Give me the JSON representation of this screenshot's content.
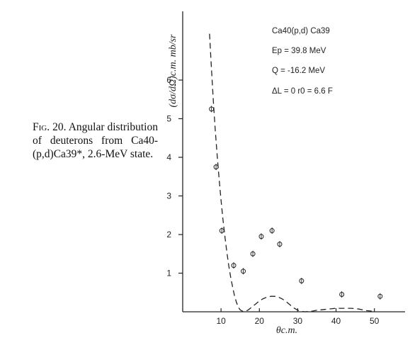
{
  "caption": {
    "label": "Fig. 20.",
    "text": "Angular distribution of deuterons from Ca40-(p,d)Ca39*, 2.6-MeV state."
  },
  "chart_data": {
    "type": "scatter",
    "title": "",
    "xlabel": "θc.m.",
    "ylabel": "(dσ/dΩ)c.m. mb/sr",
    "xlim": [
      0,
      58
    ],
    "ylim": [
      0,
      7
    ],
    "x_ticks": [
      10,
      20,
      30,
      40,
      50
    ],
    "y_ticks": [
      1,
      2,
      3,
      4,
      5,
      6
    ],
    "grid": false,
    "annotations": [
      "Ca40(p,d) Ca39",
      "Ep = 39.8 MeV",
      "Q = -16.2 MeV",
      "ΔL = 0    r0 = 6.6 F"
    ],
    "series": [
      {
        "style": "points",
        "x": [
          7.5,
          8.7,
          10.2,
          13.3,
          15.8,
          18.3,
          20.5,
          23.3,
          25.3,
          31.0,
          41.5,
          51.5
        ],
        "y": [
          5.25,
          3.75,
          2.1,
          1.2,
          1.05,
          1.5,
          1.95,
          2.1,
          1.75,
          0.8,
          0.45,
          0.4
        ]
      },
      {
        "style": "dashed-curve",
        "x": [
          7.0,
          7.5,
          8.0,
          8.5,
          9.0,
          9.5,
          10.0,
          10.5,
          11.0,
          11.5,
          12.0,
          12.5,
          13.0,
          13.5,
          14.0,
          14.5,
          15.0,
          15.5,
          16.0,
          16.5,
          17.0,
          18.0,
          19.0,
          20.0,
          21.0,
          22.0,
          23.0,
          24.0,
          25.0,
          26.0,
          27.0,
          28.0,
          29.0,
          30.0,
          31.0,
          32.0,
          33.0,
          34.0,
          35.0,
          36.0,
          37.0,
          38.0,
          39.0,
          40.0,
          41.0,
          42.0,
          43.0,
          44.0,
          45.0,
          46.0,
          47.0,
          48.0,
          49.0,
          50.0
        ],
        "y": [
          7.2,
          6.3,
          5.45,
          4.7,
          4.05,
          3.45,
          2.9,
          2.4,
          1.95,
          1.55,
          1.2,
          0.9,
          0.65,
          0.42,
          0.25,
          0.12,
          0.05,
          0.02,
          0.01,
          0.02,
          0.04,
          0.12,
          0.2,
          0.28,
          0.34,
          0.38,
          0.4,
          0.4,
          0.38,
          0.33,
          0.26,
          0.18,
          0.1,
          0.04,
          0.01,
          0.0,
          0.01,
          0.02,
          0.04,
          0.05,
          0.06,
          0.07,
          0.08,
          0.09,
          0.09,
          0.09,
          0.09,
          0.09,
          0.08,
          0.07,
          0.05,
          0.03,
          0.02,
          0.01
        ]
      }
    ]
  }
}
